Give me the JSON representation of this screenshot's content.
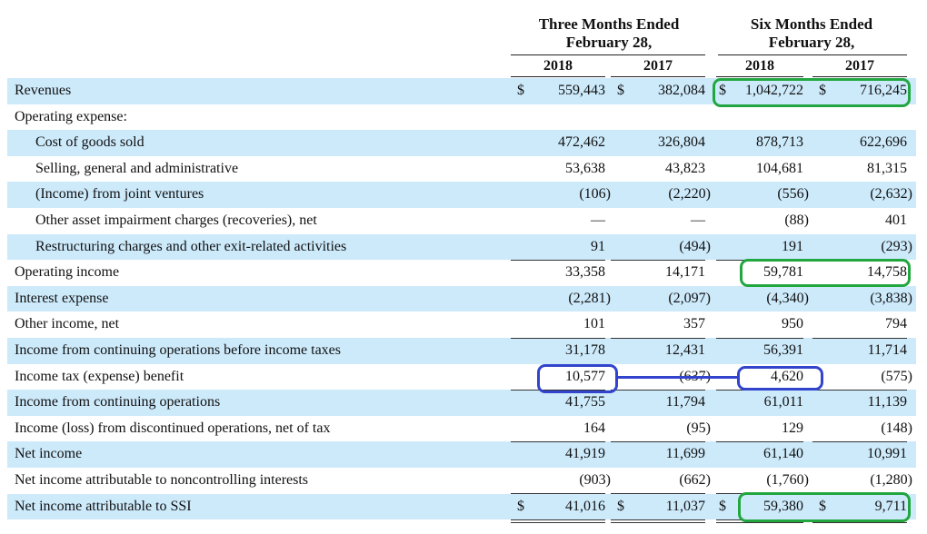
{
  "header": {
    "three_months": "Three Months Ended",
    "three_months_date": "February 28,",
    "six_months": "Six Months Ended",
    "six_months_date": "February 28,",
    "years": [
      "2018",
      "2017",
      "2018",
      "2017"
    ]
  },
  "currency_symbol": "$",
  "rows": [
    {
      "label": "Revenues",
      "values": [
        "559,443",
        "382,084",
        "1,042,722",
        "716,245"
      ]
    },
    {
      "label": "Operating expense:",
      "values": [
        "",
        "",
        "",
        ""
      ]
    },
    {
      "label": "Cost of goods sold",
      "values": [
        "472,462",
        "326,804",
        "878,713",
        "622,696"
      ]
    },
    {
      "label": "Selling, general and administrative",
      "values": [
        "53,638",
        "43,823",
        "104,681",
        "81,315"
      ]
    },
    {
      "label": "(Income) from joint ventures",
      "values": [
        "(106)",
        "(2,220)",
        "(556)",
        "(2,632)"
      ]
    },
    {
      "label": "Other asset impairment charges (recoveries), net",
      "values": [
        "—",
        "—",
        "(88)",
        "401"
      ]
    },
    {
      "label": "Restructuring charges and other exit-related activities",
      "values": [
        "91",
        "(494)",
        "191",
        "(293)"
      ]
    },
    {
      "label": "Operating income",
      "values": [
        "33,358",
        "14,171",
        "59,781",
        "14,758"
      ]
    },
    {
      "label": "Interest expense",
      "values": [
        "(2,281)",
        "(2,097)",
        "(4,340)",
        "(3,838)"
      ]
    },
    {
      "label": "Other income, net",
      "values": [
        "101",
        "357",
        "950",
        "794"
      ]
    },
    {
      "label": "Income from continuing operations before income taxes",
      "values": [
        "31,178",
        "12,431",
        "56,391",
        "11,714"
      ]
    },
    {
      "label": "Income tax (expense) benefit",
      "values": [
        "10,577",
        "(637)",
        "4,620",
        "(575)"
      ]
    },
    {
      "label": "Income from continuing operations",
      "values": [
        "41,755",
        "11,794",
        "61,011",
        "11,139"
      ]
    },
    {
      "label": "Income (loss) from discontinued operations, net of tax",
      "values": [
        "164",
        "(95)",
        "129",
        "(148)"
      ]
    },
    {
      "label": "Net income",
      "values": [
        "41,919",
        "11,699",
        "61,140",
        "10,991"
      ]
    },
    {
      "label": "Net income attributable to noncontrolling interests",
      "values": [
        "(903)",
        "(662)",
        "(1,760)",
        "(1,280)"
      ]
    },
    {
      "label": "Net income attributable to SSI",
      "values": [
        "41,016",
        "11,037",
        "59,380",
        "9,711"
      ]
    }
  ],
  "annotation_colors": {
    "green": "#22a640",
    "blue": "#3344cc",
    "row_shade": "#cdeafb"
  }
}
